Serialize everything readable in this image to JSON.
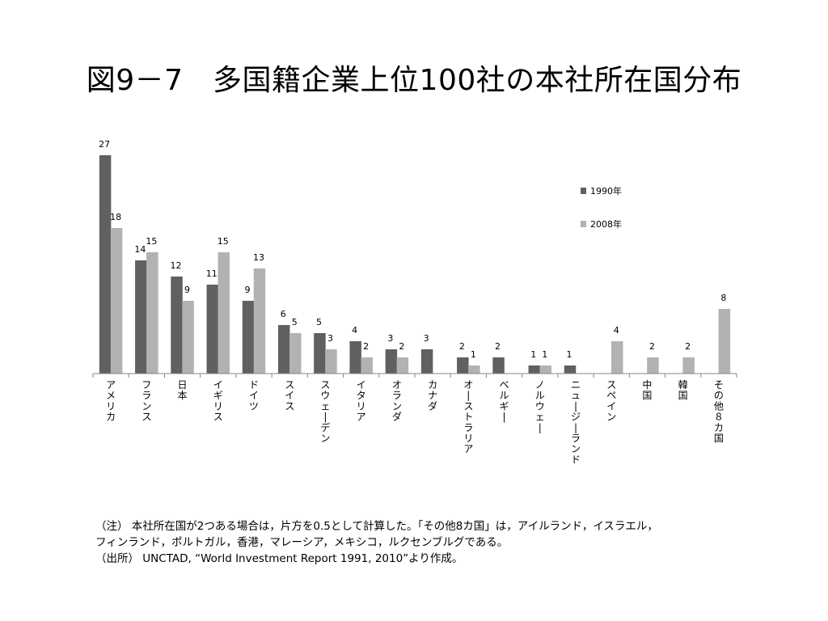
{
  "title": "図9－7　多国籍企業上位100社の本社所在国分布",
  "chart_data": {
    "type": "bar",
    "categories": [
      "アメリカ",
      "フランス",
      "日本",
      "イギリス",
      "ドイツ",
      "スイス",
      "スウェーデン",
      "イタリア",
      "オランダ",
      "カナダ",
      "オーストラリア",
      "ベルギー",
      "ノルウェー",
      "ニュージーランド",
      "スペイン",
      "中国",
      "韓国",
      "その他８カ国"
    ],
    "series": [
      {
        "name": "1990年",
        "color": "#606060",
        "values": [
          27,
          14,
          12,
          11,
          9,
          6,
          5,
          4,
          3,
          3,
          2,
          2,
          1,
          1,
          null,
          null,
          null,
          null
        ]
      },
      {
        "name": "2008年",
        "color": "#b2b2b2",
        "values": [
          18,
          15,
          9,
          15,
          13,
          5,
          3,
          2,
          2,
          null,
          1,
          null,
          1,
          null,
          4,
          2,
          2,
          8
        ]
      }
    ],
    "ylim": [
      0,
      27
    ],
    "legend_position": "top-right",
    "grid": false,
    "data_labels": true
  },
  "notes": [
    "（注） 本社所在国が2つある場合は，片方を0.5として計算した。「その他8カ国」は，アイルランド，イスラエル，",
    "フィンランド，ポルトガル，香港，マレーシア，メキシコ，ルクセンブルグである。",
    "（出所） UNCTAD, “World Investment Report 1991, 2010”より作成。"
  ]
}
